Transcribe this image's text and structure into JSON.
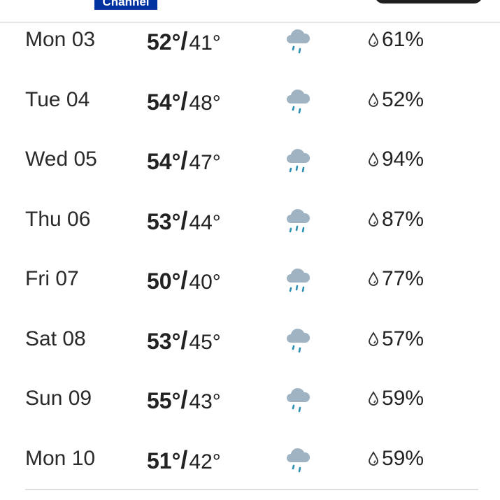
{
  "header": {
    "logo_text": "Channel"
  },
  "colors": {
    "brand": "#0033a0",
    "cloud": "#9fb3c2",
    "rain": "#2d8fb0"
  },
  "forecast": [
    {
      "day": "Mon 03",
      "high": "52°",
      "low": "41°",
      "icon": "rain-icon",
      "precip": "61%"
    },
    {
      "day": "Tue 04",
      "high": "54°",
      "low": "48°",
      "icon": "rain-icon",
      "precip": "52%"
    },
    {
      "day": "Wed 05",
      "high": "54°",
      "low": "47°",
      "icon": "heavy-rain-icon",
      "precip": "94%"
    },
    {
      "day": "Thu 06",
      "high": "53°",
      "low": "44°",
      "icon": "heavy-rain-icon",
      "precip": "87%"
    },
    {
      "day": "Fri 07",
      "high": "50°",
      "low": "40°",
      "icon": "heavy-rain-icon",
      "precip": "77%"
    },
    {
      "day": "Sat 08",
      "high": "53°",
      "low": "45°",
      "icon": "rain-icon",
      "precip": "57%"
    },
    {
      "day": "Sun 09",
      "high": "55°",
      "low": "43°",
      "icon": "rain-icon",
      "precip": "59%"
    },
    {
      "day": "Mon 10",
      "high": "51°",
      "low": "42°",
      "icon": "rain-icon",
      "precip": "59%"
    }
  ]
}
